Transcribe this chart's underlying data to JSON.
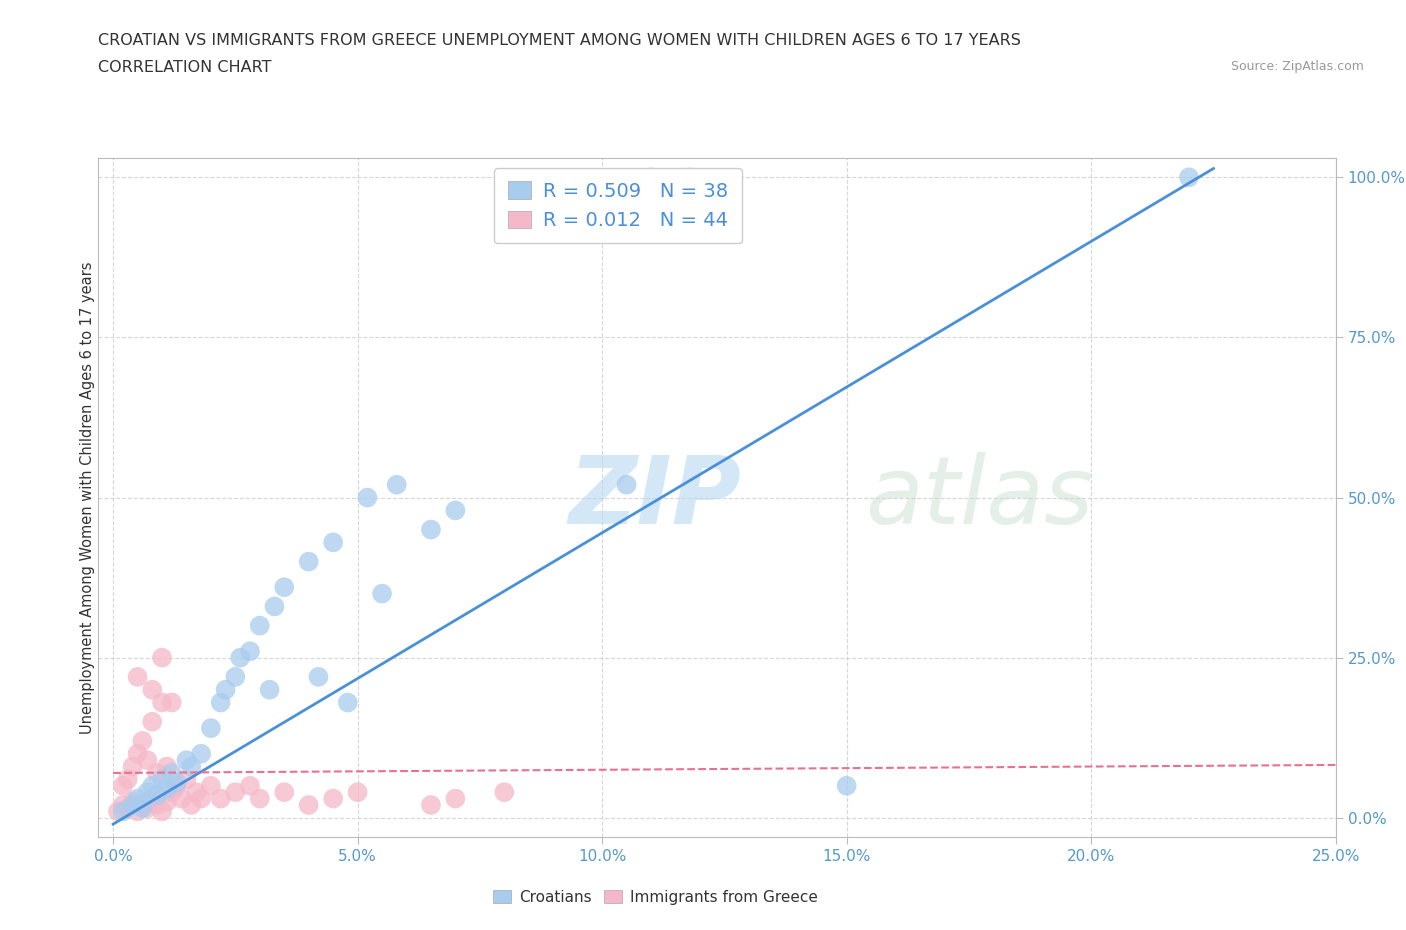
{
  "title_line1": "CROATIAN VS IMMIGRANTS FROM GREECE UNEMPLOYMENT AMONG WOMEN WITH CHILDREN AGES 6 TO 17 YEARS",
  "title_line2": "CORRELATION CHART",
  "source_text": "Source: ZipAtlas.com",
  "ylabel": "Unemployment Among Women with Children Ages 6 to 17 years",
  "x_tick_labels": [
    "0.0%",
    "5.0%",
    "10.0%",
    "15.0%",
    "20.0%",
    "25.0%"
  ],
  "x_tick_values": [
    0.0,
    5.0,
    10.0,
    15.0,
    20.0,
    25.0
  ],
  "y_tick_labels": [
    "0.0%",
    "25.0%",
    "50.0%",
    "75.0%",
    "100.0%"
  ],
  "y_tick_values": [
    0.0,
    25.0,
    50.0,
    75.0,
    100.0
  ],
  "xlim": [
    -0.3,
    25.0
  ],
  "ylim": [
    -3.0,
    103.0
  ],
  "croatian_color": "#a8ccee",
  "greek_color": "#f5b8c8",
  "trendline_croatian_color": "#4a90d9",
  "trendline_greek_color": "#e87090",
  "legend_R_croatian": "0.509",
  "legend_N_croatian": "38",
  "legend_R_greek": "0.012",
  "legend_N_greek": "44",
  "watermark_zip": "ZIP",
  "watermark_atlas": "atlas",
  "croatian_x": [
    0.2,
    0.4,
    0.5,
    0.6,
    0.7,
    0.8,
    0.9,
    1.0,
    1.1,
    1.2,
    1.3,
    1.5,
    1.6,
    1.8,
    2.0,
    2.2,
    2.5,
    2.8,
    3.0,
    3.3,
    3.5,
    4.0,
    4.5,
    5.2,
    5.8,
    6.5,
    7.0,
    3.2,
    4.2,
    11.0,
    11.8,
    22.0,
    10.5,
    5.5,
    2.6,
    2.3,
    4.8,
    15.0
  ],
  "croatian_y": [
    1.0,
    2.0,
    3.0,
    1.5,
    4.0,
    5.0,
    3.5,
    6.0,
    4.5,
    7.0,
    5.5,
    9.0,
    8.0,
    10.0,
    14.0,
    18.0,
    22.0,
    26.0,
    30.0,
    33.0,
    36.0,
    40.0,
    43.0,
    50.0,
    52.0,
    45.0,
    48.0,
    20.0,
    22.0,
    100.0,
    100.0,
    100.0,
    52.0,
    35.0,
    25.0,
    20.0,
    18.0,
    5.0
  ],
  "greek_x": [
    0.1,
    0.2,
    0.2,
    0.3,
    0.3,
    0.4,
    0.4,
    0.5,
    0.5,
    0.6,
    0.6,
    0.7,
    0.7,
    0.8,
    0.8,
    0.9,
    0.9,
    1.0,
    1.0,
    1.1,
    1.1,
    1.2,
    1.3,
    1.4,
    1.5,
    1.6,
    1.7,
    1.8,
    2.0,
    2.2,
    2.5,
    2.8,
    3.0,
    3.5,
    4.0,
    4.5,
    5.0,
    6.5,
    7.0,
    8.0,
    0.5,
    0.8,
    1.0,
    1.2
  ],
  "greek_y": [
    1.0,
    2.0,
    5.0,
    1.5,
    6.0,
    2.5,
    8.0,
    1.0,
    10.0,
    2.0,
    12.0,
    1.5,
    9.0,
    3.0,
    15.0,
    2.0,
    7.0,
    1.0,
    18.0,
    2.5,
    8.0,
    4.0,
    5.0,
    3.0,
    6.0,
    2.0,
    4.0,
    3.0,
    5.0,
    3.0,
    4.0,
    5.0,
    3.0,
    4.0,
    2.0,
    3.0,
    4.0,
    2.0,
    3.0,
    4.0,
    22.0,
    20.0,
    25.0,
    18.0
  ]
}
